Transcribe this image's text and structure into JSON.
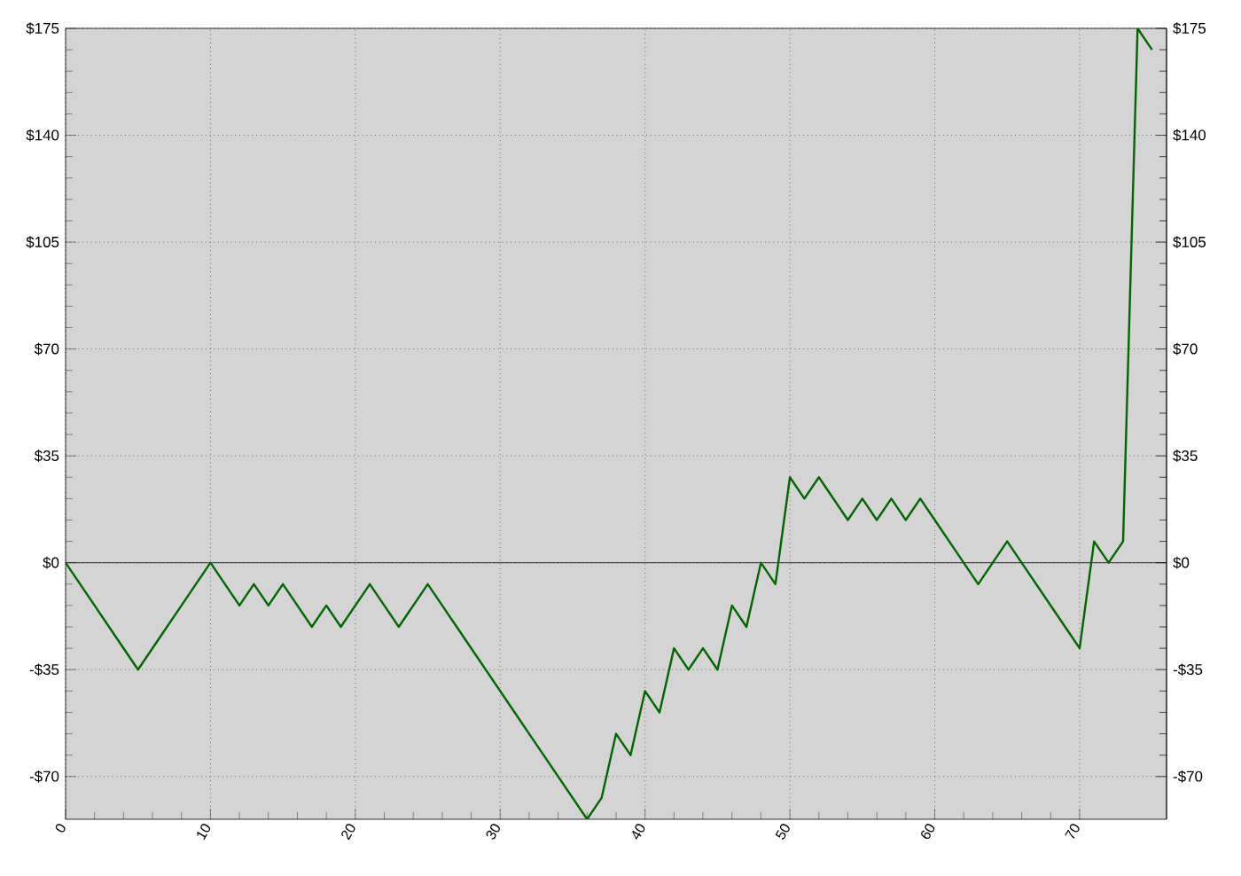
{
  "chart_data": {
    "type": "line",
    "x": [
      0,
      1,
      2,
      3,
      4,
      5,
      6,
      7,
      8,
      9,
      10,
      11,
      12,
      13,
      14,
      15,
      16,
      17,
      18,
      19,
      20,
      21,
      22,
      23,
      24,
      25,
      26,
      27,
      28,
      29,
      30,
      31,
      32,
      33,
      34,
      35,
      36,
      37,
      38,
      39,
      40,
      41,
      42,
      43,
      44,
      45,
      46,
      47,
      48,
      49,
      50,
      51,
      52,
      53,
      54,
      55,
      56,
      57,
      58,
      59,
      60,
      61,
      62,
      63,
      64,
      65,
      66,
      67,
      68,
      69,
      70,
      71,
      72,
      73,
      74,
      75
    ],
    "series": [
      {
        "color": "#006400",
        "values": [
          0,
          -7,
          -14,
          -21,
          -28,
          -35,
          -28,
          -21,
          -14,
          -7,
          0,
          -7,
          -14,
          -7,
          -14,
          -7,
          -14,
          -21,
          -14,
          -21,
          -14,
          -7,
          -14,
          -21,
          -14,
          -7,
          -14,
          -21,
          -28,
          -35,
          -42,
          -49,
          -56,
          -63,
          -70,
          -77,
          -84,
          -77,
          -56,
          -63,
          -42,
          -49,
          -28,
          -35,
          -28,
          -35,
          -14,
          -21,
          0,
          -7,
          28,
          21,
          28,
          21,
          14,
          21,
          14,
          21,
          14,
          21,
          14,
          7,
          0,
          -7,
          0,
          7,
          0,
          -7,
          -14,
          -21,
          -28,
          7,
          0,
          7,
          175,
          168
        ]
      }
    ],
    "xlim": [
      0,
      76
    ],
    "ylim": [
      -84,
      175
    ],
    "xticks": [
      0,
      10,
      20,
      30,
      40,
      50,
      60,
      70
    ],
    "yticks": [
      {
        "value": -70,
        "label": "-$70"
      },
      {
        "value": -35,
        "label": "-$35"
      },
      {
        "value": 0,
        "label": "$0"
      },
      {
        "value": 35,
        "label": "$35"
      },
      {
        "value": 70,
        "label": "$70"
      },
      {
        "value": 105,
        "label": "$105"
      },
      {
        "value": 140,
        "label": "$140"
      },
      {
        "value": 175,
        "label": "$175"
      }
    ],
    "grid": true,
    "marker": "none",
    "line_style": "solid",
    "ref_lines": [
      {
        "axis": "y",
        "value": 0,
        "color": "#000000"
      }
    ]
  }
}
